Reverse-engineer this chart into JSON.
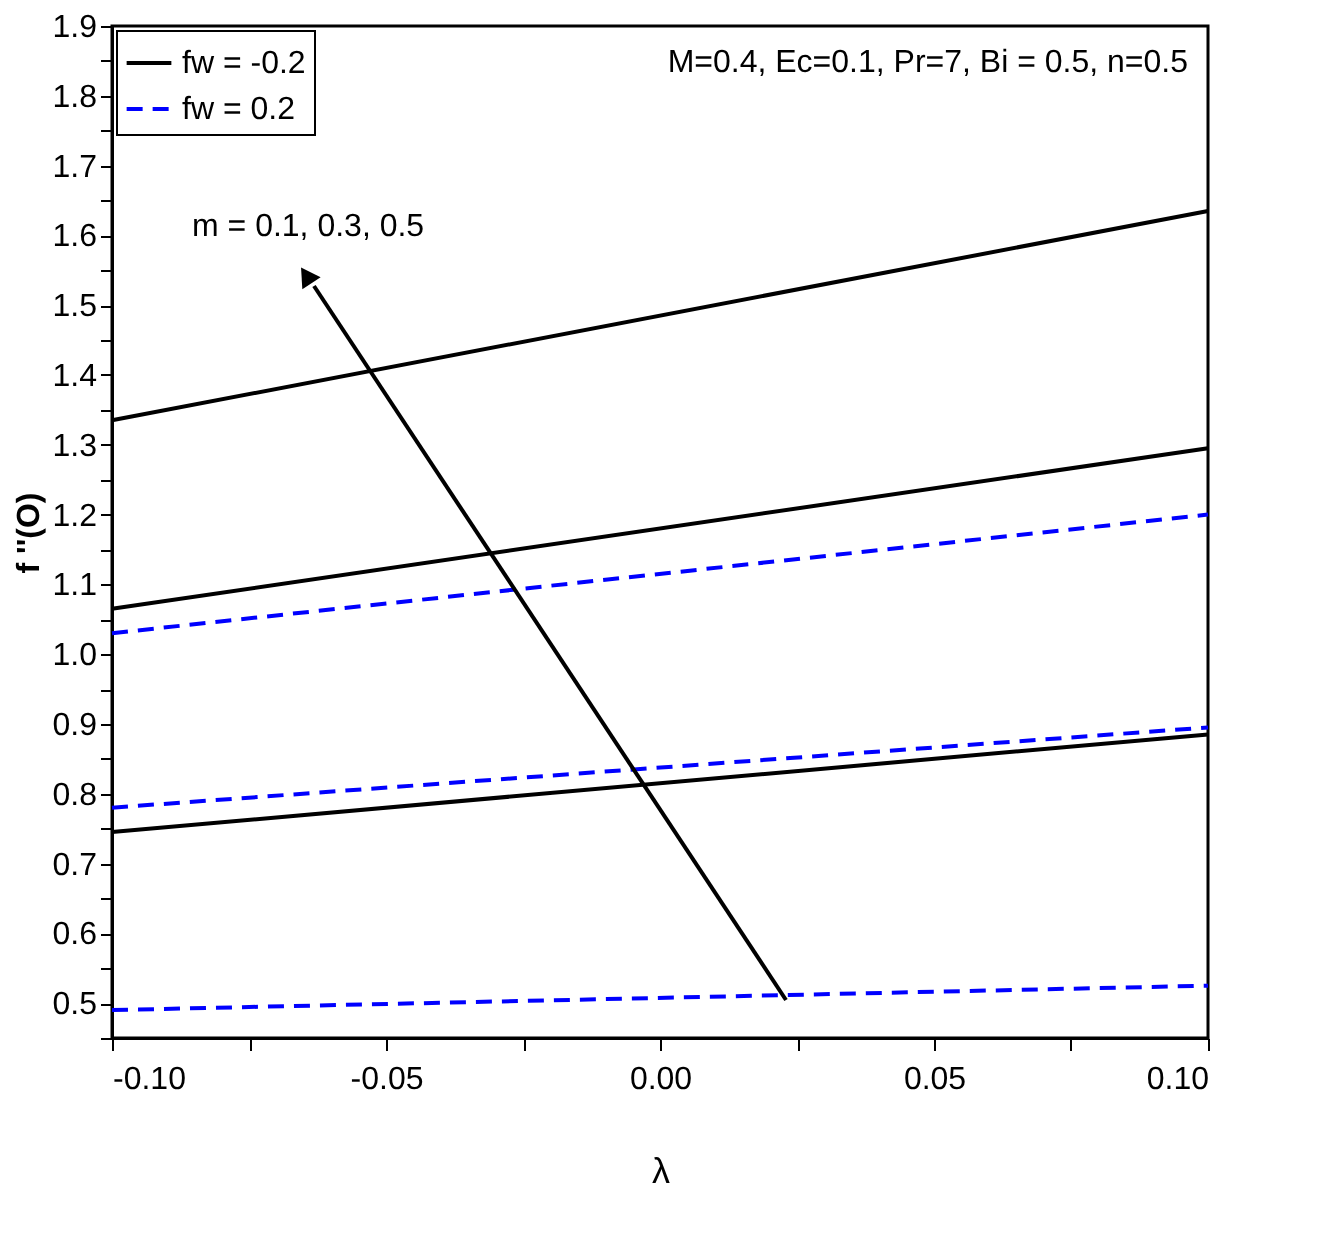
{
  "chart_data": {
    "type": "line",
    "xlabel": "λ",
    "ylabel": "f ''(O)",
    "x": [
      -0.1,
      0.1
    ],
    "series": [
      {
        "name": "fw = -0.2",
        "color": "#000000",
        "line_style": "solid",
        "values": [
          1.335,
          1.635
        ]
      },
      {
        "color": "#000000",
        "line_style": "solid",
        "values": [
          1.065,
          1.295
        ]
      },
      {
        "color": "#000000",
        "line_style": "solid",
        "values": [
          0.745,
          0.885
        ]
      },
      {
        "name": "fw = 0.2",
        "color": "#0000ff",
        "line_style": "dashed",
        "values": [
          1.03,
          1.2
        ]
      },
      {
        "color": "#0000ff",
        "line_style": "dashed",
        "values": [
          0.78,
          0.895
        ]
      },
      {
        "color": "#0000ff",
        "line_style": "dashed",
        "values": [
          0.49,
          0.525
        ]
      }
    ],
    "xlim": [
      -0.1,
      0.1
    ],
    "xticks": [
      {
        "value": -0.1,
        "label": "-0.10"
      },
      {
        "value": -0.075,
        "label": null
      },
      {
        "value": -0.05,
        "label": "-0.05"
      },
      {
        "value": -0.025,
        "label": null
      },
      {
        "value": 0,
        "label": "0.00"
      },
      {
        "value": 0.025,
        "label": null
      },
      {
        "value": 0.05,
        "label": "0.05"
      },
      {
        "value": 0.075,
        "label": null
      },
      {
        "value": 0.1,
        "label": "0.10"
      }
    ],
    "ylim": [
      0.45,
      1.9
    ],
    "yticks": [
      {
        "value": 0.45,
        "label": null
      },
      0.5,
      0.6,
      0.7,
      0.8,
      0.9,
      {
        "value": 1.0,
        "label": "1.0"
      },
      1.1,
      1.2,
      1.3,
      1.4,
      1.5,
      1.6,
      1.7,
      1.8,
      1.9,
      {
        "value": 0.55,
        "label": null
      },
      {
        "value": 0.65,
        "label": null
      },
      {
        "value": 0.75,
        "label": null
      },
      {
        "value": 0.85,
        "label": null
      },
      {
        "value": 0.95,
        "label": null
      },
      {
        "value": 1.05,
        "label": null
      },
      {
        "value": 1.15,
        "label": null
      },
      {
        "value": 1.25,
        "label": null
      },
      {
        "value": 1.35,
        "label": null
      },
      {
        "value": 1.45,
        "label": null
      },
      {
        "value": 1.55,
        "label": null
      },
      {
        "value": 1.65,
        "label": null
      },
      {
        "value": 1.75,
        "label": null
      },
      {
        "value": 1.85,
        "label": null
      }
    ],
    "annotations": [
      "M=0.4, Ec=0.1, Pr=7, Bi = 0.5, n=0.5",
      "m = 0.1, 0.3, 0.5"
    ],
    "legend": "top left",
    "grid": false,
    "marker": "none"
  }
}
